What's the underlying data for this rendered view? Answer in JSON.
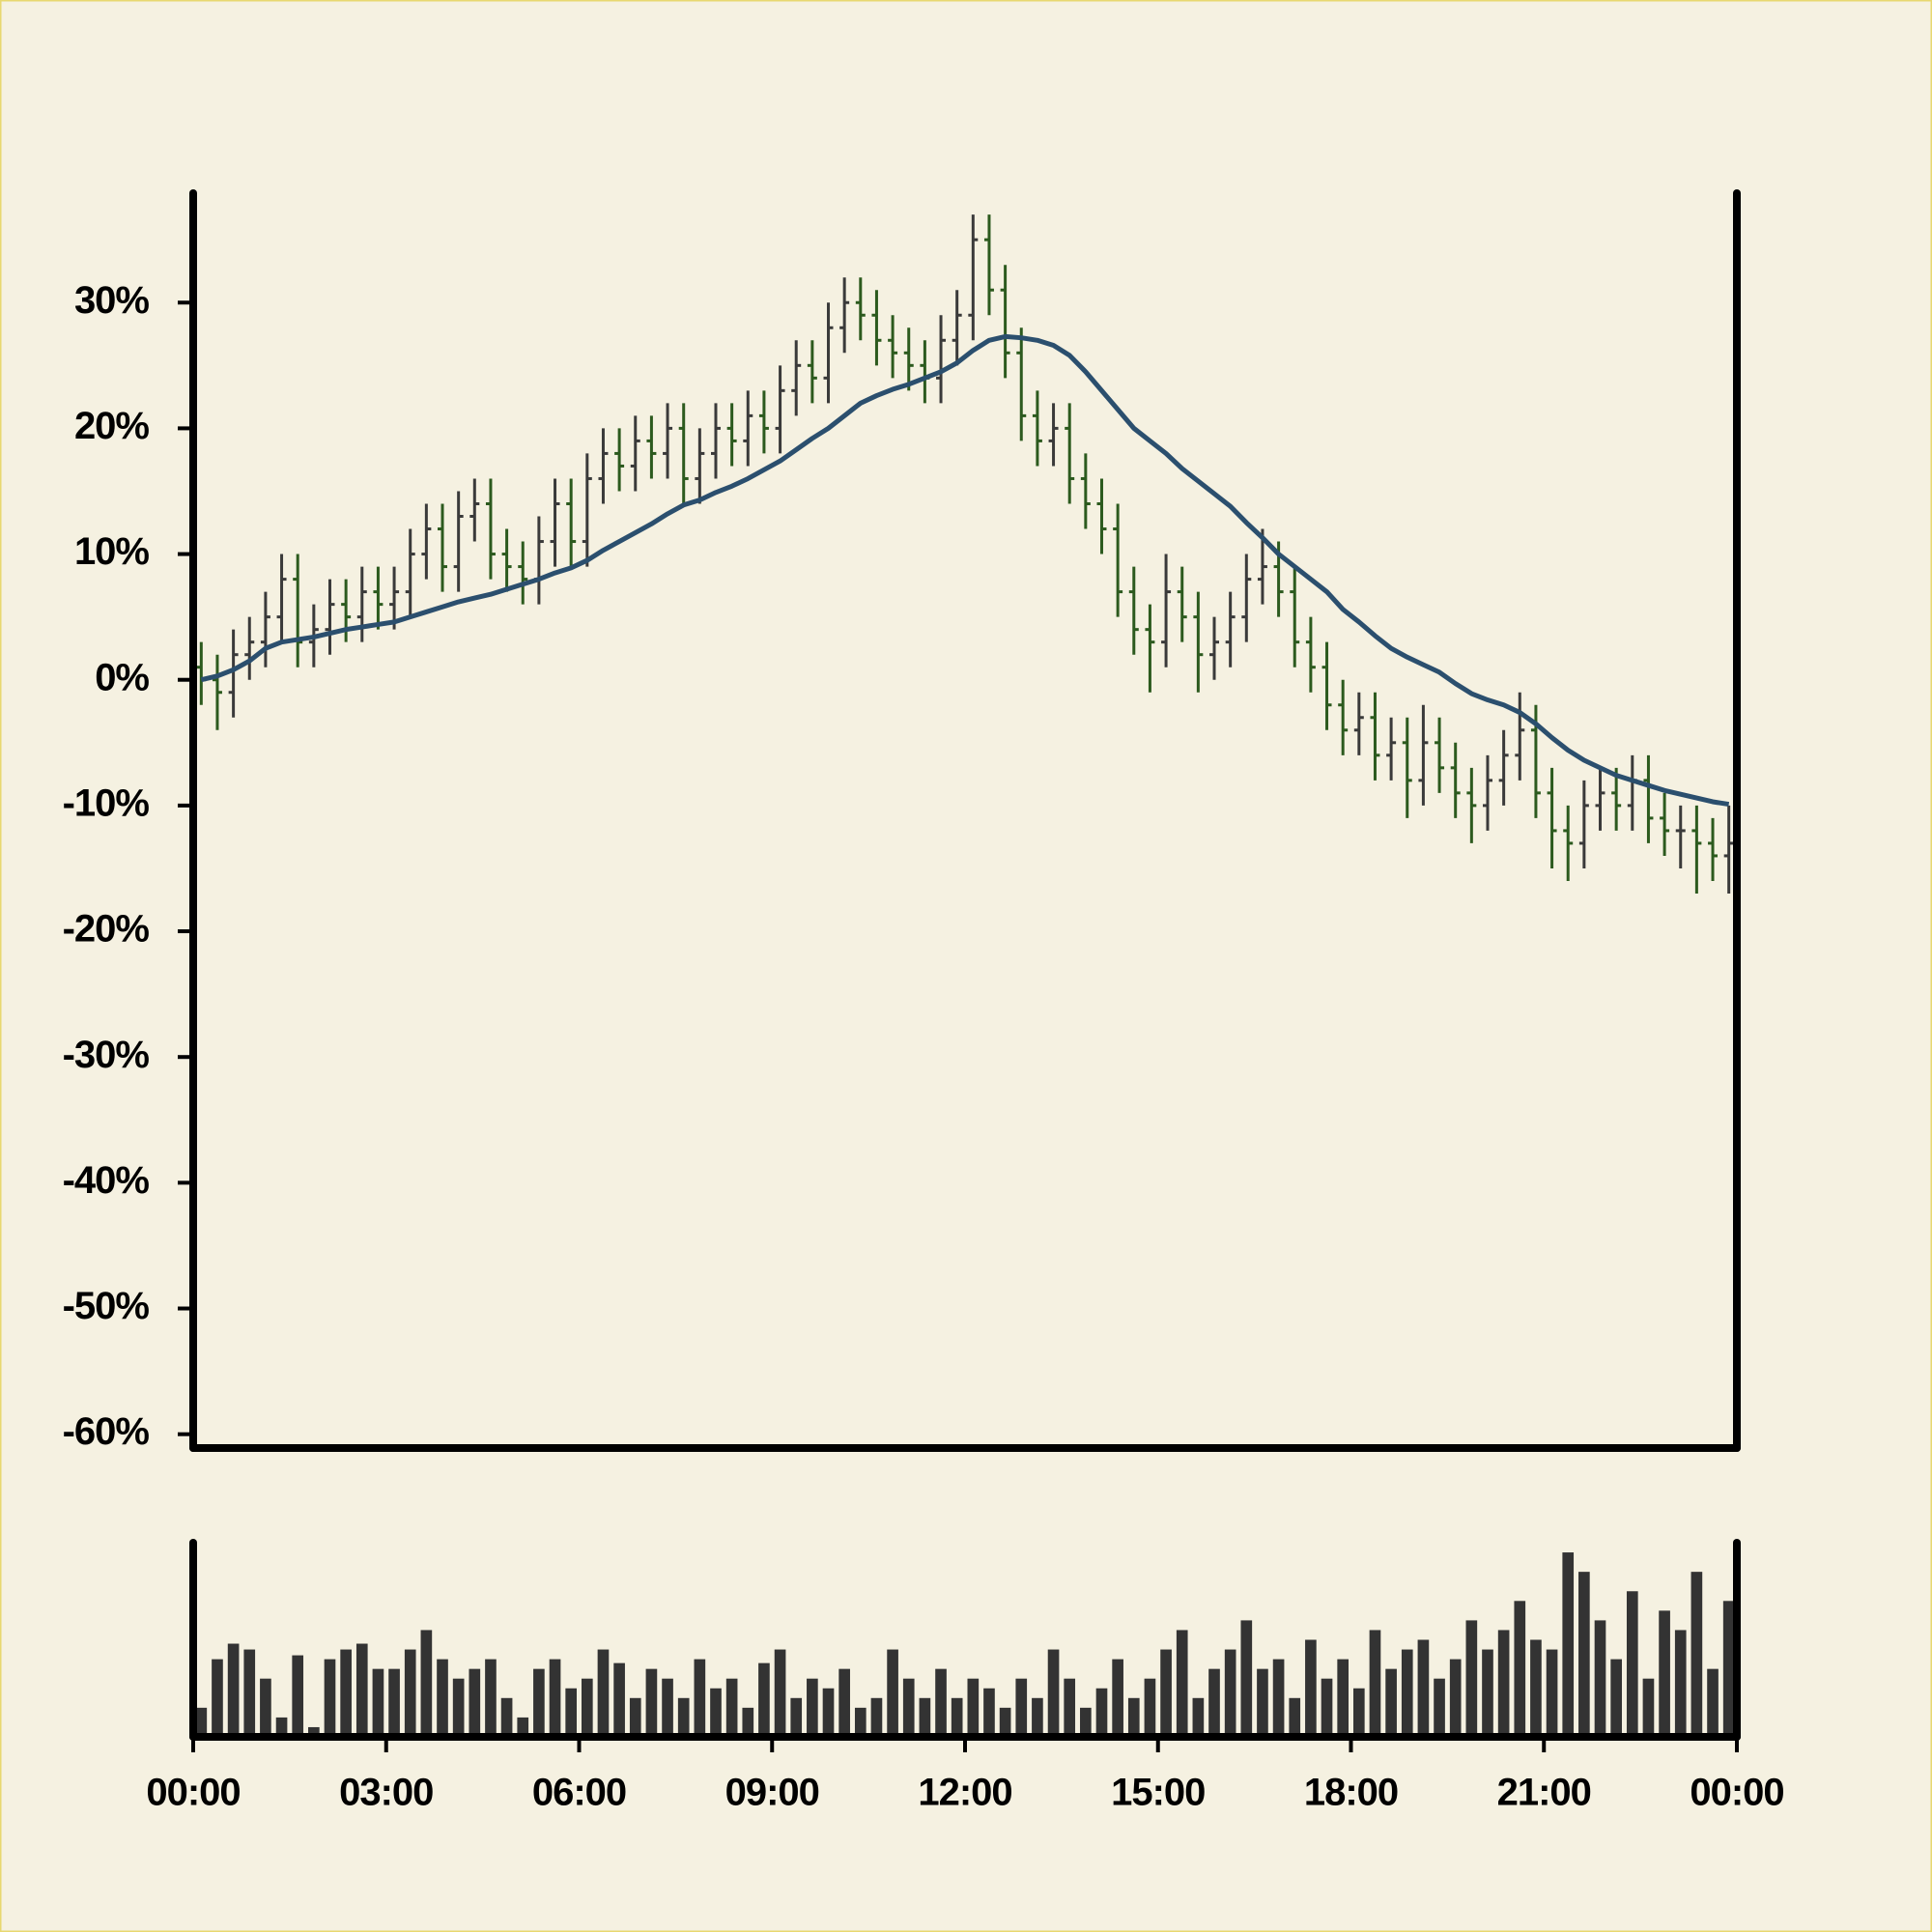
{
  "chart_data": {
    "type": "ohlc",
    "x": [
      0.125,
      0.375,
      0.625,
      0.875,
      1.125,
      1.375,
      1.625,
      1.875,
      2.125,
      2.375,
      2.625,
      2.875,
      3.125,
      3.375,
      3.625,
      3.875,
      4.125,
      4.375,
      4.625,
      4.875,
      5.125,
      5.375,
      5.625,
      5.875,
      6.125,
      6.375,
      6.625,
      6.875,
      7.125,
      7.375,
      7.625,
      7.875,
      8.125,
      8.375,
      8.625,
      8.875,
      9.125,
      9.375,
      9.625,
      9.875,
      10.125,
      10.375,
      10.625,
      10.875,
      11.125,
      11.375,
      11.625,
      11.875,
      12.125,
      12.375,
      12.625,
      12.875,
      13.125,
      13.375,
      13.625,
      13.875,
      14.125,
      14.375,
      14.625,
      14.875,
      15.125,
      15.375,
      15.625,
      15.875,
      16.125,
      16.375,
      16.625,
      16.875,
      17.125,
      17.375,
      17.625,
      17.875,
      18.125,
      18.375,
      18.625,
      18.875,
      19.125,
      19.375,
      19.625,
      19.875,
      20.125,
      20.375,
      20.625,
      20.875,
      21.125,
      21.375,
      21.625,
      21.875,
      22.125,
      22.375,
      22.625,
      22.875,
      23.125,
      23.375,
      23.625,
      23.875
    ],
    "open": [
      1,
      0,
      -1,
      2,
      3,
      5,
      8,
      3,
      4,
      6,
      5,
      7,
      6,
      7,
      10,
      12,
      9,
      13,
      14,
      10,
      9,
      8,
      11,
      14,
      11,
      16,
      18,
      17,
      19,
      18,
      20,
      16,
      18,
      20,
      19,
      21,
      20,
      23,
      25,
      24,
      28,
      30,
      29,
      27,
      26,
      25,
      24,
      27,
      29,
      35,
      31,
      26,
      21,
      19,
      20,
      16,
      14,
      12,
      7,
      4,
      3,
      7,
      5,
      2,
      3,
      5,
      8,
      9,
      7,
      3,
      1,
      -2,
      -4,
      -3,
      -6,
      -5,
      -8,
      -5,
      -7,
      -9,
      -10,
      -8,
      -6,
      -4,
      -9,
      -12,
      -13,
      -10,
      -9,
      -10,
      -8,
      -11,
      -12,
      -12,
      -13,
      -14
    ],
    "high": [
      3,
      2,
      4,
      5,
      7,
      10,
      10,
      6,
      8,
      8,
      9,
      9,
      9,
      12,
      14,
      14,
      15,
      16,
      16,
      12,
      11,
      13,
      16,
      16,
      18,
      20,
      20,
      21,
      21,
      22,
      22,
      20,
      22,
      22,
      23,
      23,
      25,
      27,
      27,
      30,
      32,
      32,
      31,
      29,
      28,
      27,
      29,
      31,
      37,
      37,
      33,
      28,
      23,
      22,
      22,
      18,
      16,
      14,
      9,
      6,
      10,
      9,
      7,
      5,
      7,
      10,
      12,
      11,
      9,
      5,
      3,
      0,
      -1,
      -1,
      -3,
      -3,
      -2,
      -3,
      -5,
      -7,
      -6,
      -4,
      -1,
      -2,
      -7,
      -10,
      -8,
      -7,
      -7,
      -6,
      -6,
      -9,
      -10,
      -10,
      -11,
      -10
    ],
    "low": [
      -2,
      -4,
      -3,
      0,
      1,
      3,
      1,
      1,
      2,
      3,
      3,
      4,
      4,
      5,
      8,
      7,
      7,
      11,
      8,
      7,
      6,
      6,
      9,
      9,
      9,
      14,
      15,
      15,
      16,
      16,
      14,
      14,
      16,
      17,
      17,
      18,
      18,
      21,
      22,
      22,
      26,
      27,
      25,
      24,
      23,
      22,
      22,
      25,
      27,
      29,
      24,
      19,
      17,
      17,
      14,
      12,
      10,
      5,
      2,
      -1,
      1,
      3,
      -1,
      0,
      1,
      3,
      6,
      5,
      1,
      -1,
      -4,
      -6,
      -6,
      -8,
      -8,
      -11,
      -10,
      -9,
      -11,
      -13,
      -12,
      -10,
      -8,
      -11,
      -15,
      -16,
      -15,
      -12,
      -12,
      -12,
      -13,
      -14,
      -15,
      -17,
      -16,
      -17
    ],
    "close": [
      0,
      -1,
      2,
      3,
      5,
      8,
      3,
      4,
      6,
      5,
      7,
      6,
      7,
      10,
      12,
      9,
      13,
      14,
      10,
      9,
      8,
      11,
      14,
      11,
      16,
      18,
      17,
      19,
      18,
      20,
      16,
      18,
      20,
      19,
      21,
      20,
      23,
      25,
      24,
      28,
      30,
      29,
      27,
      26,
      25,
      24,
      27,
      29,
      35,
      31,
      26,
      21,
      19,
      20,
      16,
      14,
      12,
      7,
      4,
      3,
      7,
      5,
      2,
      3,
      5,
      8,
      9,
      7,
      3,
      1,
      -2,
      -4,
      -3,
      -6,
      -5,
      -8,
      -5,
      -7,
      -9,
      -10,
      -8,
      -6,
      -4,
      -9,
      -12,
      -13,
      -10,
      -9,
      -10,
      -8,
      -11,
      -12,
      -12,
      -13,
      -14,
      -13
    ],
    "up_color": "#3a3a3a",
    "down_color": "#2c5a1e",
    "moving_average": {
      "color": "#2b4f6e",
      "values": [
        0,
        0.3,
        0.8,
        1.5,
        2.5,
        3,
        3.2,
        3.4,
        3.7,
        4,
        4.2,
        4.4,
        4.6,
        5,
        5.4,
        5.8,
        6.2,
        6.5,
        6.8,
        7.2,
        7.6,
        8,
        8.5,
        8.9,
        9.5,
        10.3,
        11,
        11.7,
        12.4,
        13.2,
        13.9,
        14.3,
        14.9,
        15.4,
        16,
        16.7,
        17.4,
        18.3,
        19.2,
        20,
        21,
        22,
        22.6,
        23.1,
        23.5,
        24,
        24.5,
        25.2,
        26.2,
        27,
        27.3,
        27.2,
        27,
        26.6,
        25.8,
        24.5,
        23,
        21.5,
        20,
        19,
        18,
        16.8,
        15.8,
        14.8,
        13.8,
        12.5,
        11.3,
        10,
        9,
        8,
        7,
        5.6,
        4.6,
        3.5,
        2.5,
        1.8,
        1.2,
        0.6,
        -0.3,
        -1.1,
        -1.6,
        -2,
        -2.6,
        -3.5,
        -4.6,
        -5.6,
        -6.4,
        -7,
        -7.6,
        -8,
        -8.4,
        -8.8,
        -9.1,
        -9.4,
        -9.7,
        -9.9
      ]
    },
    "volume": {
      "color": "#333333",
      "ylim": [
        0,
        100
      ],
      "values": [
        15,
        40,
        48,
        45,
        30,
        10,
        42,
        5,
        40,
        45,
        48,
        35,
        35,
        45,
        55,
        40,
        30,
        35,
        40,
        20,
        10,
        35,
        40,
        25,
        30,
        45,
        38,
        20,
        35,
        30,
        20,
        40,
        25,
        30,
        15,
        38,
        45,
        20,
        30,
        25,
        35,
        15,
        20,
        45,
        30,
        20,
        35,
        20,
        30,
        25,
        15,
        30,
        20,
        45,
        30,
        15,
        25,
        40,
        20,
        30,
        45,
        55,
        20,
        35,
        45,
        60,
        35,
        40,
        20,
        50,
        30,
        40,
        25,
        55,
        35,
        45,
        50,
        30,
        40,
        60,
        45,
        55,
        70,
        50,
        45,
        95,
        85,
        60,
        40,
        75,
        30,
        65,
        55,
        85,
        35,
        70
      ]
    },
    "xlim": [
      0,
      24
    ],
    "xticks": [
      {
        "value": 0,
        "label": "00:00"
      },
      {
        "value": 3,
        "label": "03:00"
      },
      {
        "value": 6,
        "label": "06:00"
      },
      {
        "value": 9,
        "label": "09:00"
      },
      {
        "value": 12,
        "label": "12:00"
      },
      {
        "value": 15,
        "label": "15:00"
      },
      {
        "value": 18,
        "label": "18:00"
      },
      {
        "value": 21,
        "label": "21:00"
      },
      {
        "value": 24,
        "label": "00:00"
      }
    ],
    "ylim": [
      -61.1,
      38.7
    ],
    "yticks": [
      {
        "value": -60,
        "label": "-60%"
      },
      {
        "value": -50,
        "label": "-50%"
      },
      {
        "value": -40,
        "label": "-40%"
      },
      {
        "value": -30,
        "label": "-30%"
      },
      {
        "value": -20,
        "label": "-20%"
      },
      {
        "value": -10,
        "label": "-10%"
      },
      {
        "value": 0,
        "label": "0%"
      },
      {
        "value": 10,
        "label": "10%"
      },
      {
        "value": 20,
        "label": "20%"
      },
      {
        "value": 30,
        "label": "30%"
      }
    ]
  }
}
